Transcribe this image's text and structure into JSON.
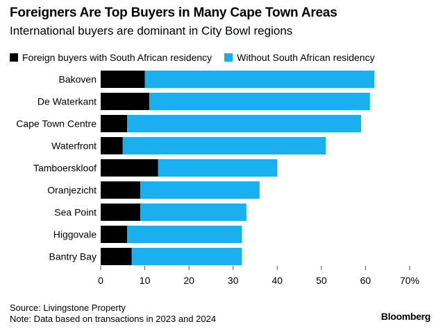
{
  "header": {
    "title": "Foreigners Are Top Buyers in Many Cape Town Areas",
    "subtitle": "International buyers are dominant in City Bowl regions"
  },
  "colors": {
    "series_1": "#000000",
    "series_2": "#1ab0f0",
    "axis": "#000000",
    "tick": "#555555"
  },
  "footer": {
    "source": "Source: Livingstone Property",
    "note": "Note: Data based on transactions in 2023 and 2024",
    "brand": "Bloomberg"
  },
  "chart_data": {
    "type": "bar",
    "orientation": "horizontal",
    "stacked": true,
    "categories": [
      "Bakoven",
      "De Waterkant",
      "Cape Town Centre",
      "Waterfront",
      "Tamboerskloof",
      "Oranjezicht",
      "Sea Point",
      "Higgovale",
      "Bantry Bay"
    ],
    "series": [
      {
        "name": "Foreign buyers with South African residency",
        "values": [
          10,
          11,
          6,
          5,
          13,
          9,
          9,
          6,
          7
        ]
      },
      {
        "name": "Without South African residency",
        "values": [
          52,
          50,
          53,
          46,
          27,
          27,
          24,
          26,
          25
        ]
      }
    ],
    "xlim": [
      0,
      70
    ],
    "xticks": [
      "0",
      "10",
      "20",
      "30",
      "40",
      "50",
      "60",
      "70%"
    ],
    "xtick_values": [
      0,
      10,
      20,
      30,
      40,
      50,
      60,
      70
    ],
    "legend_position": "top-left",
    "grid": false
  }
}
